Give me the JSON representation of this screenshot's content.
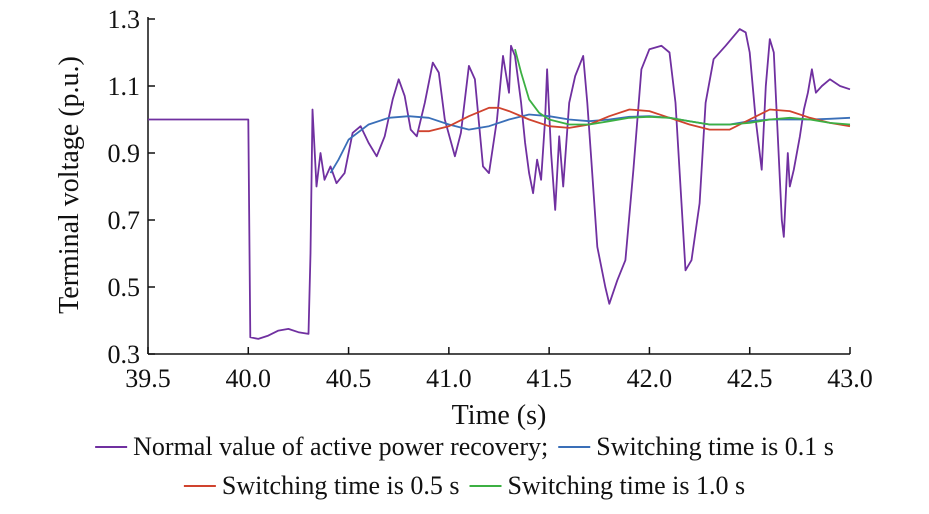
{
  "chart_data": {
    "type": "line",
    "xlabel": "Time (s)",
    "ylabel": "Terminal voltage (p.u.)",
    "xlim": [
      39.5,
      43.0
    ],
    "ylim": [
      0.3,
      1.3
    ],
    "xticks": [
      "39.5",
      "40.0",
      "40.5",
      "41.0",
      "41.5",
      "42.0",
      "42.5",
      "43.0"
    ],
    "yticks": [
      "0.3",
      "0.5",
      "0.7",
      "0.9",
      "1.1",
      "1.3"
    ],
    "grid": false,
    "legend_position": "bottom",
    "series": [
      {
        "name": "Normal value of active power recovery;",
        "color": "#7030a0",
        "points": [
          [
            39.5,
            1.0
          ],
          [
            40.0,
            1.0
          ],
          [
            40.01,
            0.35
          ],
          [
            40.05,
            0.345
          ],
          [
            40.1,
            0.355
          ],
          [
            40.15,
            0.37
          ],
          [
            40.2,
            0.375
          ],
          [
            40.25,
            0.365
          ],
          [
            40.3,
            0.36
          ],
          [
            40.31,
            0.6
          ],
          [
            40.32,
            1.03
          ],
          [
            40.34,
            0.8
          ],
          [
            40.36,
            0.9
          ],
          [
            40.38,
            0.82
          ],
          [
            40.41,
            0.86
          ],
          [
            40.44,
            0.81
          ],
          [
            40.48,
            0.84
          ],
          [
            40.52,
            0.96
          ],
          [
            40.56,
            0.98
          ],
          [
            40.6,
            0.93
          ],
          [
            40.64,
            0.89
          ],
          [
            40.68,
            0.95
          ],
          [
            40.72,
            1.06
          ],
          [
            40.75,
            1.12
          ],
          [
            40.78,
            1.07
          ],
          [
            40.81,
            0.97
          ],
          [
            40.84,
            0.95
          ],
          [
            40.88,
            1.05
          ],
          [
            40.92,
            1.17
          ],
          [
            40.95,
            1.14
          ],
          [
            40.98,
            1.0
          ],
          [
            41.03,
            0.89
          ],
          [
            41.06,
            0.96
          ],
          [
            41.1,
            1.16
          ],
          [
            41.13,
            1.12
          ],
          [
            41.17,
            0.86
          ],
          [
            41.2,
            0.84
          ],
          [
            41.24,
            1.0
          ],
          [
            41.27,
            1.19
          ],
          [
            41.3,
            1.08
          ],
          [
            41.31,
            1.22
          ],
          [
            41.33,
            1.19
          ],
          [
            41.36,
            1.05
          ],
          [
            41.38,
            0.93
          ],
          [
            41.4,
            0.84
          ],
          [
            41.42,
            0.78
          ],
          [
            41.44,
            0.88
          ],
          [
            41.46,
            0.82
          ],
          [
            41.48,
            1.0
          ],
          [
            41.49,
            1.15
          ],
          [
            41.51,
            0.9
          ],
          [
            41.53,
            0.73
          ],
          [
            41.55,
            0.95
          ],
          [
            41.57,
            0.8
          ],
          [
            41.6,
            1.05
          ],
          [
            41.63,
            1.13
          ],
          [
            41.67,
            1.19
          ],
          [
            41.69,
            1.05
          ],
          [
            41.71,
            0.88
          ],
          [
            41.74,
            0.62
          ],
          [
            41.78,
            0.5
          ],
          [
            41.8,
            0.45
          ],
          [
            41.84,
            0.52
          ],
          [
            41.88,
            0.58
          ],
          [
            41.92,
            0.85
          ],
          [
            41.96,
            1.15
          ],
          [
            42.0,
            1.21
          ],
          [
            42.06,
            1.22
          ],
          [
            42.1,
            1.2
          ],
          [
            42.13,
            1.05
          ],
          [
            42.16,
            0.75
          ],
          [
            42.18,
            0.55
          ],
          [
            42.21,
            0.58
          ],
          [
            42.25,
            0.75
          ],
          [
            42.28,
            1.05
          ],
          [
            42.32,
            1.18
          ],
          [
            42.38,
            1.22
          ],
          [
            42.45,
            1.27
          ],
          [
            42.48,
            1.26
          ],
          [
            42.5,
            1.2
          ],
          [
            42.53,
            1.0
          ],
          [
            42.56,
            0.85
          ],
          [
            42.58,
            1.1
          ],
          [
            42.6,
            1.24
          ],
          [
            42.62,
            1.2
          ],
          [
            42.64,
            0.95
          ],
          [
            42.66,
            0.7
          ],
          [
            42.67,
            0.65
          ],
          [
            42.69,
            0.9
          ],
          [
            42.7,
            0.8
          ],
          [
            42.72,
            0.85
          ],
          [
            42.75,
            0.95
          ],
          [
            42.77,
            1.03
          ],
          [
            42.79,
            1.08
          ],
          [
            42.81,
            1.15
          ],
          [
            42.83,
            1.08
          ],
          [
            42.86,
            1.1
          ],
          [
            42.9,
            1.12
          ],
          [
            42.95,
            1.1
          ],
          [
            43.0,
            1.09
          ]
        ]
      },
      {
        "name": "Switching time is 0.1 s",
        "color": "#3a6fb8",
        "points": [
          [
            40.41,
            0.84
          ],
          [
            40.45,
            0.88
          ],
          [
            40.5,
            0.94
          ],
          [
            40.6,
            0.985
          ],
          [
            40.7,
            1.005
          ],
          [
            40.8,
            1.01
          ],
          [
            40.9,
            1.005
          ],
          [
            41.0,
            0.985
          ],
          [
            41.1,
            0.97
          ],
          [
            41.2,
            0.98
          ],
          [
            41.3,
            1.0
          ],
          [
            41.4,
            1.015
          ],
          [
            41.5,
            1.01
          ],
          [
            41.6,
            1.0
          ],
          [
            41.7,
            0.995
          ],
          [
            41.8,
            1.0
          ],
          [
            41.9,
            1.008
          ],
          [
            42.0,
            1.01
          ],
          [
            42.1,
            1.005
          ],
          [
            42.2,
            0.995
          ],
          [
            42.3,
            0.985
          ],
          [
            42.4,
            0.985
          ],
          [
            42.5,
            0.995
          ],
          [
            42.6,
            1.0
          ],
          [
            42.7,
            1.0
          ],
          [
            42.8,
            1.0
          ],
          [
            42.9,
            1.002
          ],
          [
            43.0,
            1.005
          ]
        ]
      },
      {
        "name": "Switching time is 0.5 s",
        "color": "#d0432e",
        "points": [
          [
            40.85,
            0.965
          ],
          [
            40.9,
            0.965
          ],
          [
            41.0,
            0.98
          ],
          [
            41.1,
            1.01
          ],
          [
            41.2,
            1.035
          ],
          [
            41.25,
            1.035
          ],
          [
            41.3,
            1.025
          ],
          [
            41.4,
            1.0
          ],
          [
            41.5,
            0.98
          ],
          [
            41.6,
            0.975
          ],
          [
            41.7,
            0.985
          ],
          [
            41.8,
            1.01
          ],
          [
            41.9,
            1.03
          ],
          [
            42.0,
            1.025
          ],
          [
            42.1,
            1.005
          ],
          [
            42.2,
            0.985
          ],
          [
            42.3,
            0.97
          ],
          [
            42.4,
            0.97
          ],
          [
            42.5,
            1.0
          ],
          [
            42.6,
            1.03
          ],
          [
            42.7,
            1.025
          ],
          [
            42.8,
            1.005
          ],
          [
            42.9,
            0.99
          ],
          [
            43.0,
            0.98
          ]
        ]
      },
      {
        "name": "Switching time is 1.0 s",
        "color": "#3cb043",
        "points": [
          [
            41.33,
            1.21
          ],
          [
            41.36,
            1.14
          ],
          [
            41.4,
            1.06
          ],
          [
            41.45,
            1.02
          ],
          [
            41.5,
            1.0
          ],
          [
            41.6,
            0.985
          ],
          [
            41.7,
            0.985
          ],
          [
            41.8,
            0.995
          ],
          [
            41.9,
            1.005
          ],
          [
            42.0,
            1.008
          ],
          [
            42.1,
            1.005
          ],
          [
            42.2,
            0.995
          ],
          [
            42.3,
            0.985
          ],
          [
            42.4,
            0.985
          ],
          [
            42.5,
            0.99
          ],
          [
            42.6,
            1.0
          ],
          [
            42.7,
            1.005
          ],
          [
            42.8,
            1.0
          ],
          [
            42.9,
            0.99
          ],
          [
            43.0,
            0.985
          ]
        ]
      }
    ]
  }
}
